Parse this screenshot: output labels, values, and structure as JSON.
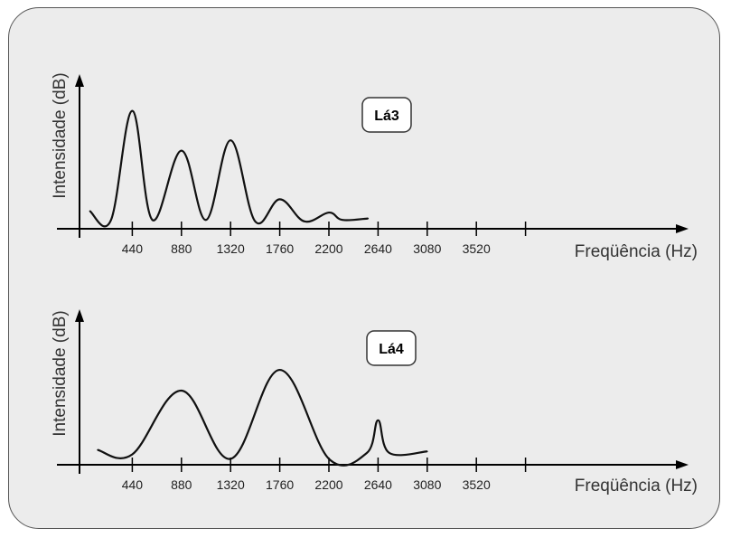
{
  "chart_data": [
    {
      "type": "line",
      "title": "Lá3",
      "ylabel": "Intensidade (dB)",
      "xlabel": "Freqüência (Hz)",
      "x_ticks": [
        "440",
        "880",
        "1320",
        "1760",
        "2200",
        "2640",
        "3080",
        "3520"
      ],
      "xlim": [
        0,
        4050
      ],
      "ylim": [
        0,
        1
      ],
      "grid": false,
      "series": [
        {
          "values": [
            {
              "x": 60,
              "y": 0.12
            },
            {
              "x": 250,
              "y": 0.06
            },
            {
              "x": 440,
              "y": 0.8
            },
            {
              "x": 620,
              "y": 0.06
            },
            {
              "x": 880,
              "y": 0.53
            },
            {
              "x": 1100,
              "y": 0.06
            },
            {
              "x": 1320,
              "y": 0.6
            },
            {
              "x": 1540,
              "y": 0.05
            },
            {
              "x": 1760,
              "y": 0.2
            },
            {
              "x": 1980,
              "y": 0.05
            },
            {
              "x": 2200,
              "y": 0.11
            },
            {
              "x": 2320,
              "y": 0.06
            },
            {
              "x": 2550,
              "y": 0.07
            }
          ]
        }
      ]
    },
    {
      "type": "line",
      "title": "Lá4",
      "ylabel": "Intensidade (dB)",
      "xlabel": "Freqüência (Hz)",
      "x_ticks": [
        "440",
        "880",
        "1320",
        "1760",
        "2200",
        "2640",
        "3080",
        "3520"
      ],
      "xlim": [
        0,
        4050
      ],
      "ylim": [
        0,
        1
      ],
      "grid": false,
      "series": [
        {
          "values": [
            {
              "x": 130,
              "y": 0.1
            },
            {
              "x": 440,
              "y": 0.07
            },
            {
              "x": 880,
              "y": 0.5
            },
            {
              "x": 1320,
              "y": 0.04
            },
            {
              "x": 1760,
              "y": 0.64
            },
            {
              "x": 2200,
              "y": 0.04
            },
            {
              "x": 2540,
              "y": 0.08
            },
            {
              "x": 2640,
              "y": 0.3
            },
            {
              "x": 2740,
              "y": 0.08
            },
            {
              "x": 3080,
              "y": 0.09
            }
          ]
        }
      ]
    }
  ]
}
